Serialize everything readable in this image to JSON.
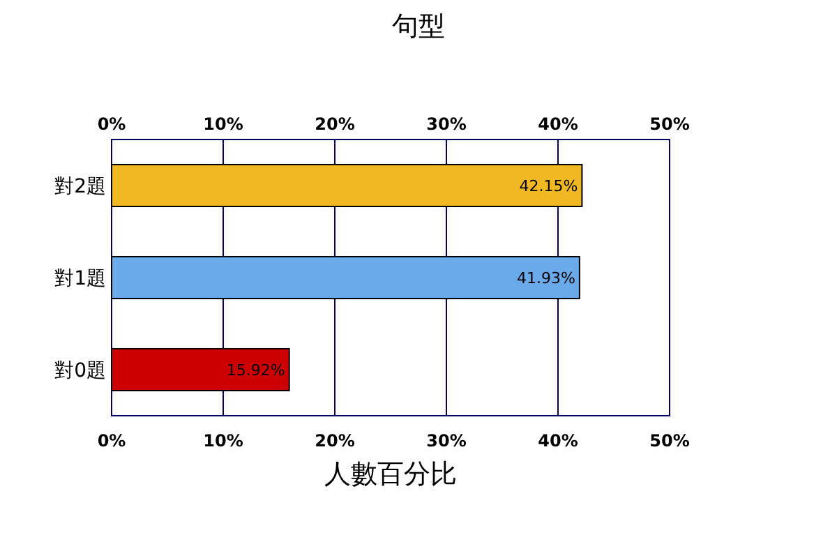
{
  "chart_data": {
    "type": "bar",
    "orientation": "horizontal",
    "title": "句型",
    "xlabel": "人數百分比",
    "categories": [
      "對2題",
      "對1題",
      "對0題"
    ],
    "values": [
      42.15,
      41.93,
      15.92
    ],
    "colors": [
      "#f0b823",
      "#6aaaea",
      "#cc0000"
    ],
    "value_labels": [
      "42.15%",
      "41.93%",
      "15.92%"
    ],
    "xlim": [
      0,
      50
    ],
    "xticks": [
      {
        "value": 0,
        "label": "0%"
      },
      {
        "value": 10,
        "label": "10%"
      },
      {
        "value": 20,
        "label": "20%"
      },
      {
        "value": 30,
        "label": "30%"
      },
      {
        "value": 40,
        "label": "40%"
      },
      {
        "value": 50,
        "label": "50%"
      }
    ],
    "x2lim": [
      0,
      50
    ],
    "x2ticks": [
      {
        "value": 0,
        "label": "0%"
      },
      {
        "value": 10,
        "label": "10%"
      },
      {
        "value": 20,
        "label": "20%"
      },
      {
        "value": 30,
        "label": "30%"
      },
      {
        "value": 40,
        "label": "40%"
      },
      {
        "value": 50,
        "label": "50%"
      }
    ],
    "grid": "x"
  }
}
